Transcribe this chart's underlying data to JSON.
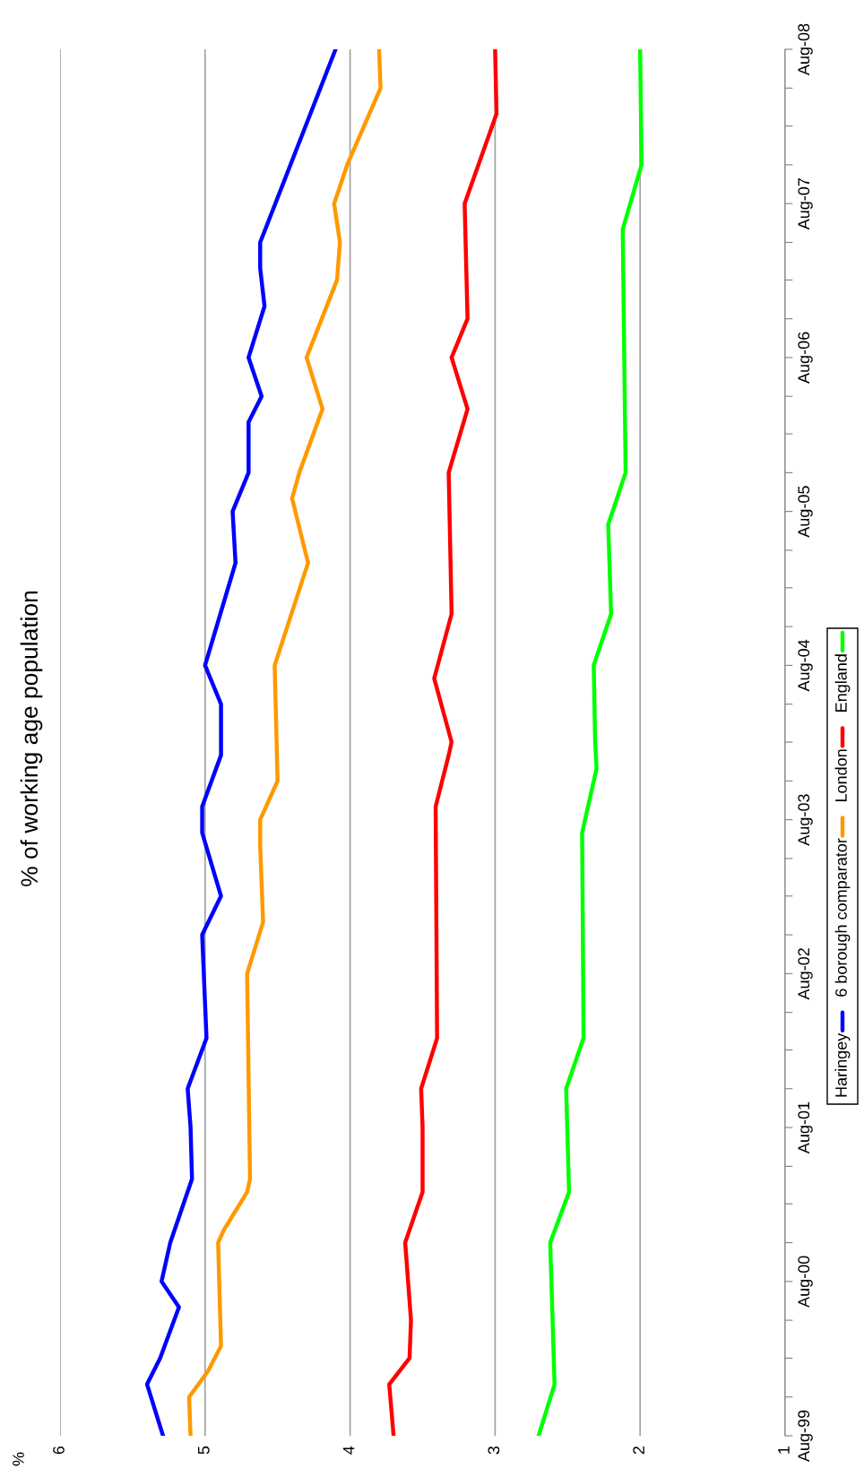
{
  "chart_data": {
    "type": "line",
    "orientation": "horizontal",
    "subtitle": "% of working age population",
    "annotations": [
      "%"
    ],
    "ylim": [
      "1999-08",
      "2008-08"
    ],
    "yticks": [
      {
        "value": "1999-08",
        "label": "Aug-99"
      },
      {
        "value": "1999-11",
        "label": null
      },
      {
        "value": "2000-02",
        "label": null
      },
      {
        "value": "2000-05",
        "label": null
      },
      {
        "value": "2000-08",
        "label": "Aug-00"
      },
      {
        "value": "2000-11",
        "label": null
      },
      {
        "value": "2001-02",
        "label": null
      },
      {
        "value": "2001-05",
        "label": null
      },
      {
        "value": "2001-08",
        "label": "Aug-01"
      },
      {
        "value": "2001-11",
        "label": null
      },
      {
        "value": "2002-02",
        "label": null
      },
      {
        "value": "2002-05",
        "label": null
      },
      {
        "value": "2002-08",
        "label": "Aug-02"
      },
      {
        "value": "2002-11",
        "label": null
      },
      {
        "value": "2003-02",
        "label": null
      },
      {
        "value": "2003-05",
        "label": null
      },
      {
        "value": "2003-08",
        "label": "Aug-03"
      },
      {
        "value": "2003-11",
        "label": null
      },
      {
        "value": "2004-02",
        "label": null
      },
      {
        "value": "2004-05",
        "label": null
      },
      {
        "value": "2004-08",
        "label": "Aug-04"
      },
      {
        "value": "2004-11",
        "label": null
      },
      {
        "value": "2005-02",
        "label": null
      },
      {
        "value": "2005-05",
        "label": null
      },
      {
        "value": "2005-08",
        "label": "Aug-05"
      },
      {
        "value": "2005-11",
        "label": null
      },
      {
        "value": "2006-02",
        "label": null
      },
      {
        "value": "2006-05",
        "label": null
      },
      {
        "value": "2006-08",
        "label": "Aug-06"
      },
      {
        "value": "2006-11",
        "label": null
      },
      {
        "value": "2007-02",
        "label": null
      },
      {
        "value": "2007-05",
        "label": null
      },
      {
        "value": "2007-08",
        "label": "Aug-07"
      },
      {
        "value": "2007-11",
        "label": null
      },
      {
        "value": "2008-02",
        "label": null
      },
      {
        "value": "2008-05",
        "label": null
      },
      {
        "value": "2008-08",
        "label": "Aug-08"
      }
    ],
    "xlim": [
      6,
      1
    ],
    "xticks": [
      6,
      5,
      4,
      3,
      2,
      1
    ],
    "grid": "x",
    "legend": "bottom",
    "marker": "none",
    "line_style": "solid",
    "series": [
      {
        "name": "Haringey",
        "color": "#0000ff",
        "x": [
          "1999-08",
          "1999-12",
          "2000-02",
          "2000-06",
          "2000-08",
          "2000-11",
          "2001-04",
          "2001-08",
          "2001-11",
          "2002-03",
          "2002-11",
          "2003-02",
          "2003-07",
          "2003-09",
          "2004-01",
          "2004-05",
          "2004-08",
          "2005-04",
          "2005-08",
          "2005-11",
          "2006-03",
          "2006-05",
          "2006-08",
          "2006-12",
          "2007-03",
          "2007-05",
          "2008-08"
        ],
        "values": [
          5.29,
          5.4,
          5.31,
          5.18,
          5.3,
          5.24,
          5.09,
          5.1,
          5.12,
          4.99,
          5.02,
          4.89,
          5.02,
          5.02,
          4.89,
          4.89,
          5.0,
          4.79,
          4.81,
          4.7,
          4.7,
          4.61,
          4.7,
          4.59,
          4.62,
          4.62,
          4.1
        ]
      },
      {
        "name": "6 borough comparator",
        "color": "#ff9900",
        "x": [
          "1999-08",
          "1999-11",
          "2000-01",
          "2000-03",
          "2000-11",
          "2000-12",
          "2001-03",
          "2001-04",
          "2002-08",
          "2002-12",
          "2003-06",
          "2003-08",
          "2003-11",
          "2004-08",
          "2005-04",
          "2005-09",
          "2005-11",
          "2006-04",
          "2006-08",
          "2007-02",
          "2007-05",
          "2007-08",
          "2007-11",
          "2008-05",
          "2008-08"
        ],
        "values": [
          5.1,
          5.11,
          4.98,
          4.89,
          4.91,
          4.87,
          4.71,
          4.69,
          4.71,
          4.6,
          4.62,
          4.62,
          4.5,
          4.52,
          4.29,
          4.4,
          4.35,
          4.19,
          4.3,
          4.09,
          4.07,
          4.11,
          4.02,
          3.79,
          3.8
        ]
      },
      {
        "name": "London",
        "color": "#ff0000",
        "x": [
          "1999-08",
          "1999-12",
          "2000-02",
          "2000-05",
          "2000-11",
          "2001-03",
          "2001-08",
          "2001-11",
          "2002-03",
          "2003-09",
          "2004-01",
          "2004-02",
          "2004-07",
          "2004-12",
          "2005-11",
          "2006-04",
          "2006-08",
          "2006-11",
          "2007-08",
          "2008-03",
          "2008-08"
        ],
        "values": [
          3.7,
          3.73,
          3.59,
          3.58,
          3.62,
          3.5,
          3.5,
          3.51,
          3.4,
          3.41,
          3.32,
          3.3,
          3.42,
          3.3,
          3.32,
          3.19,
          3.3,
          3.19,
          3.21,
          2.99,
          3.0
        ]
      },
      {
        "name": "England",
        "color": "#00ff00",
        "x": [
          "1999-08",
          "1999-12",
          "2000-11",
          "2001-03",
          "2001-11",
          "2002-03",
          "2003-07",
          "2003-12",
          "2004-02",
          "2004-08",
          "2004-12",
          "2005-07",
          "2005-11",
          "2007-06",
          "2007-11",
          "2008-08"
        ],
        "values": [
          2.7,
          2.59,
          2.62,
          2.49,
          2.51,
          2.39,
          2.4,
          2.3,
          2.31,
          2.32,
          2.2,
          2.22,
          2.1,
          2.12,
          1.99,
          2.0
        ]
      }
    ]
  }
}
